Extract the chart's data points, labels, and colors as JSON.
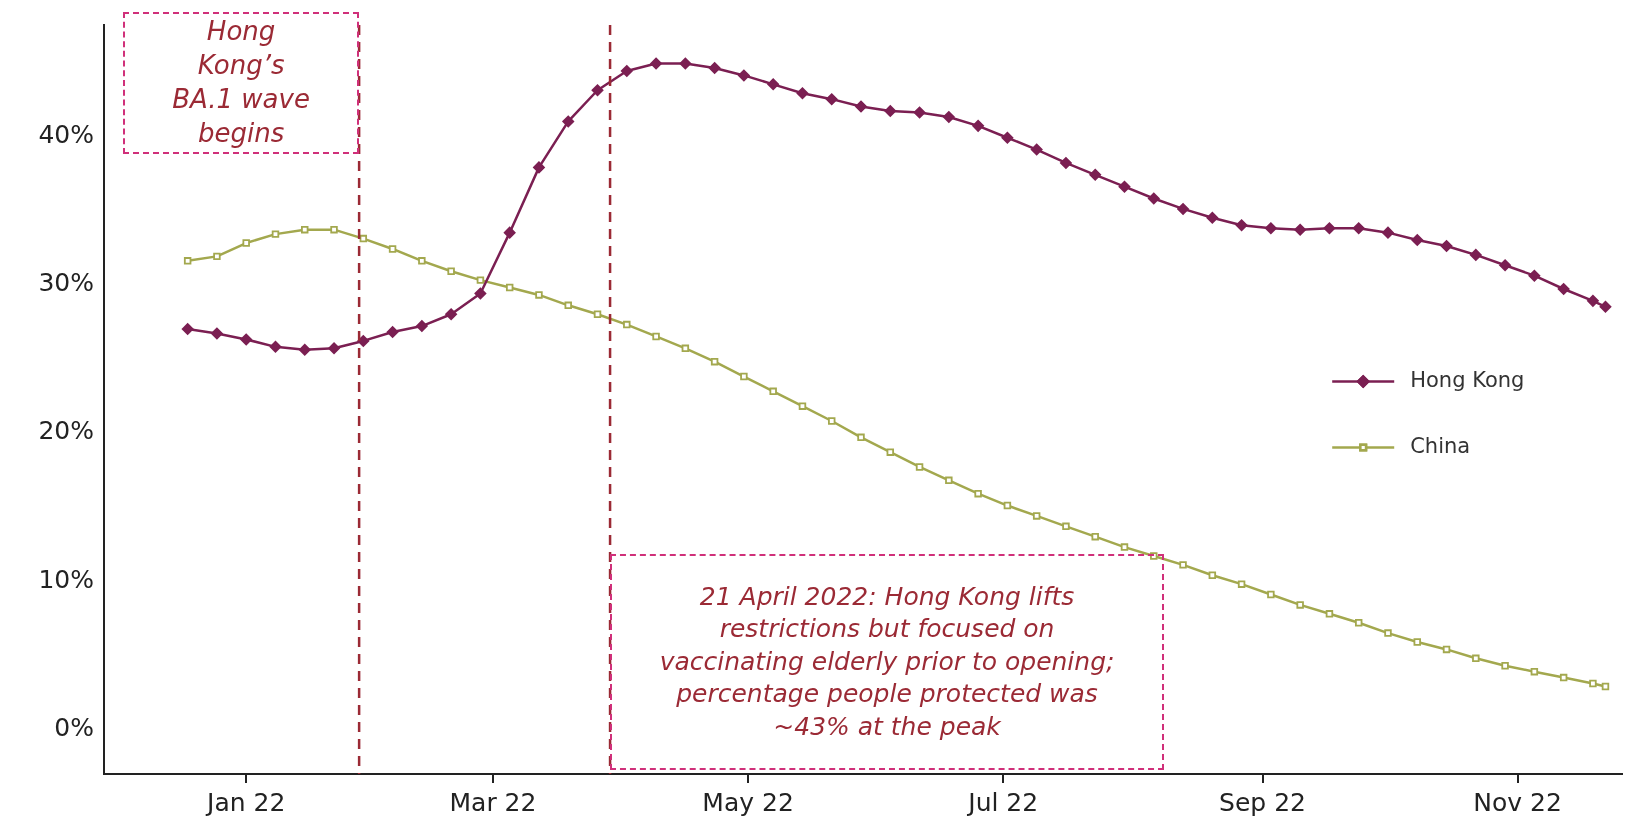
{
  "chart_data": {
    "type": "line",
    "x": [
      "2021-12-18",
      "2021-12-25",
      "2022-01-01",
      "2022-01-08",
      "2022-01-15",
      "2022-01-22",
      "2022-01-29",
      "2022-02-05",
      "2022-02-12",
      "2022-02-19",
      "2022-02-26",
      "2022-03-05",
      "2022-03-12",
      "2022-03-19",
      "2022-03-26",
      "2022-04-02",
      "2022-04-09",
      "2022-04-16",
      "2022-04-23",
      "2022-04-30",
      "2022-05-07",
      "2022-05-14",
      "2022-05-21",
      "2022-05-28",
      "2022-06-04",
      "2022-06-11",
      "2022-06-18",
      "2022-06-25",
      "2022-07-02",
      "2022-07-09",
      "2022-07-16",
      "2022-07-23",
      "2022-07-30",
      "2022-08-06",
      "2022-08-13",
      "2022-08-20",
      "2022-08-27",
      "2022-09-03",
      "2022-09-10",
      "2022-09-17",
      "2022-09-24",
      "2022-10-01",
      "2022-10-08",
      "2022-10-15",
      "2022-10-22",
      "2022-10-29",
      "2022-11-05",
      "2022-11-12",
      "2022-11-19",
      "2022-11-22"
    ],
    "series": [
      {
        "name": "Hong Kong",
        "color": "#7b1f52",
        "marker": "diamond",
        "values": [
          27.0,
          26.7,
          26.3,
          25.8,
          25.6,
          25.7,
          26.2,
          26.8,
          27.2,
          28.0,
          29.4,
          33.5,
          37.9,
          41.0,
          43.1,
          44.4,
          44.9,
          44.9,
          44.6,
          44.1,
          43.5,
          42.9,
          42.5,
          42.0,
          41.7,
          41.6,
          41.3,
          40.7,
          39.9,
          39.1,
          38.2,
          37.4,
          36.6,
          35.8,
          35.1,
          34.5,
          34.0,
          33.8,
          33.7,
          33.8,
          33.8,
          33.5,
          33.0,
          32.6,
          32.0,
          31.3,
          30.6,
          29.7,
          28.9,
          28.5
        ]
      },
      {
        "name": "China",
        "color": "#a3a84e",
        "marker": "square",
        "values": [
          31.6,
          31.9,
          32.8,
          33.4,
          33.7,
          33.7,
          33.1,
          32.4,
          31.6,
          30.9,
          30.3,
          29.8,
          29.3,
          28.6,
          28.0,
          27.3,
          26.5,
          25.7,
          24.8,
          23.8,
          22.8,
          21.8,
          20.8,
          19.7,
          18.7,
          17.7,
          16.8,
          15.9,
          15.1,
          14.4,
          13.7,
          13.0,
          12.3,
          11.7,
          11.1,
          10.4,
          9.8,
          9.1,
          8.4,
          7.8,
          7.2,
          6.5,
          5.9,
          5.4,
          4.8,
          4.3,
          3.9,
          3.5,
          3.1,
          2.9
        ]
      }
    ],
    "xlim": [
      "2021-11-28",
      "2022-11-26"
    ],
    "xticks": [
      {
        "value": "2022-01-01",
        "label": "Jan 22"
      },
      {
        "value": "2022-03-01",
        "label": "Mar 22"
      },
      {
        "value": "2022-05-01",
        "label": "May 22"
      },
      {
        "value": "2022-07-01",
        "label": "Jul 22"
      },
      {
        "value": "2022-09-01",
        "label": "Sep 22"
      },
      {
        "value": "2022-11-01",
        "label": "Nov 22"
      }
    ],
    "ylim": [
      -3,
      47.5
    ],
    "yticks": [
      {
        "value": 0,
        "label": "0%"
      },
      {
        "value": 10,
        "label": "10%"
      },
      {
        "value": 20,
        "label": "20%"
      },
      {
        "value": 30,
        "label": "30%"
      },
      {
        "value": 40,
        "label": "40%"
      }
    ],
    "ref_lines": [
      {
        "axis": "x",
        "value": "2022-01-28",
        "color": "#9b2a35",
        "line_style": "dashed"
      },
      {
        "axis": "x",
        "value": "2022-03-29",
        "color": "#9b2a35",
        "line_style": "dashed"
      }
    ],
    "annotations": [
      "Hong Kong’s BA.1 wave begins",
      "21 April 2022: Hong Kong lifts restrictions but focused on vaccinating elderly prior to opening; percentage people protected was ~43% at the peak"
    ],
    "legend": "right",
    "grid": false,
    "line_style": "solid"
  }
}
